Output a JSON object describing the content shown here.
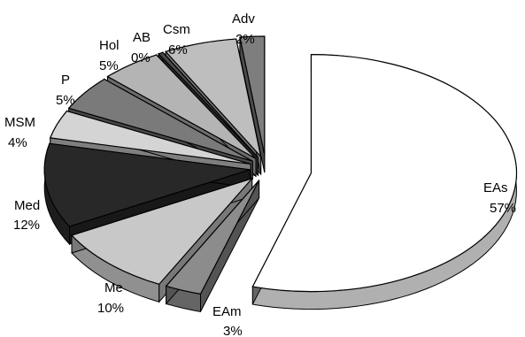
{
  "chart_data": {
    "type": "pie",
    "style": "3d-exploded",
    "title": "",
    "start_angle_deg": 0,
    "direction": "clockwise",
    "slices": [
      {
        "label": "EAs",
        "pct_label": "57%",
        "value": 57,
        "color": "#ffffff"
      },
      {
        "label": "EAm",
        "pct_label": "3%",
        "value": 3,
        "color": "#8c8c8c"
      },
      {
        "label": "Me",
        "pct_label": "10%",
        "value": 10,
        "color": "#c8c8c8"
      },
      {
        "label": "Med",
        "pct_label": "12%",
        "value": 12,
        "color": "#282828"
      },
      {
        "label": "MSM",
        "pct_label": "4%",
        "value": 4,
        "color": "#d4d4d4"
      },
      {
        "label": "P",
        "pct_label": "5%",
        "value": 5,
        "color": "#7a7a7a"
      },
      {
        "label": "Hol",
        "pct_label": "5%",
        "value": 5,
        "color": "#b4b4b4"
      },
      {
        "label": "AB",
        "pct_label": "0%",
        "value": 0.4,
        "color": "#4a4a4a"
      },
      {
        "label": "Csm",
        "pct_label": "6%",
        "value": 6,
        "color": "#bebebe"
      },
      {
        "label": "Adv",
        "pct_label": "2%",
        "value": 2,
        "color": "#7e7e7e"
      }
    ]
  }
}
